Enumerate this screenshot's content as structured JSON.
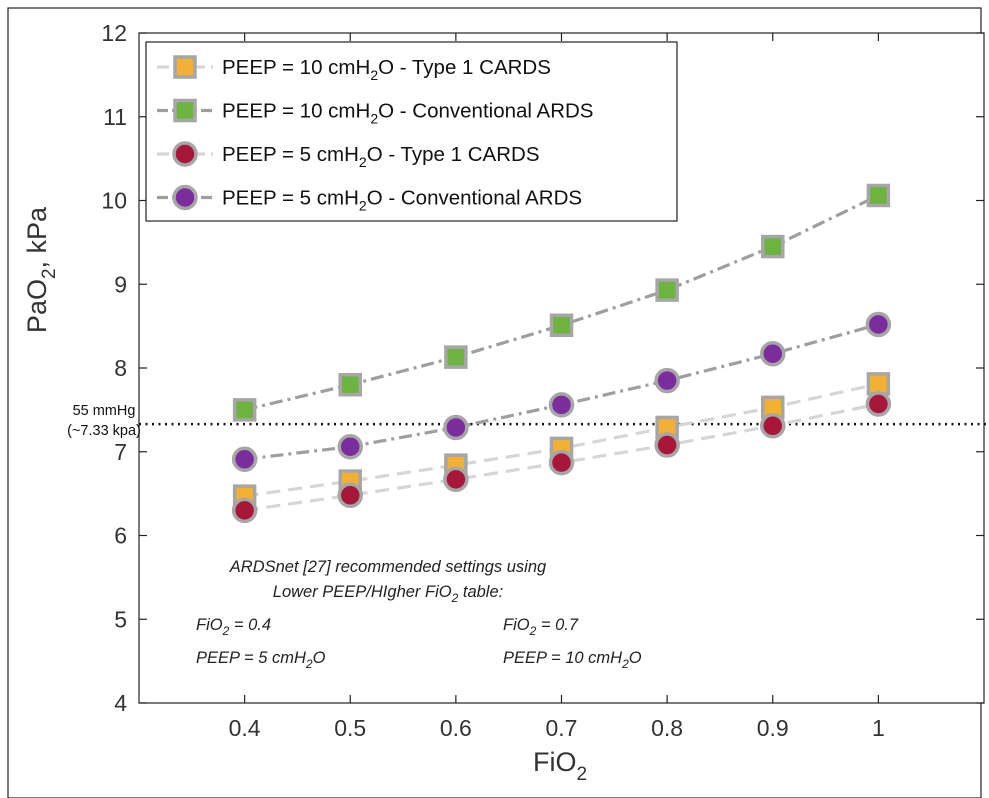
{
  "chart_data": {
    "type": "line",
    "xlabel": {
      "base": "FiO",
      "sub": "2"
    },
    "ylabel": {
      "base": "PaO",
      "sub": "2",
      "rest": ", kPa"
    },
    "xlim": [
      0.3,
      1.1
    ],
    "ylim": [
      4,
      12
    ],
    "xticks": [
      0.4,
      0.5,
      0.6,
      0.7,
      0.8,
      0.9,
      1
    ],
    "yticks": [
      4,
      5,
      6,
      7,
      8,
      9,
      10,
      11,
      12
    ],
    "x": [
      0.4,
      0.5,
      0.6,
      0.7,
      0.8,
      0.9,
      1.0
    ],
    "legend_position": "top-left",
    "series": [
      {
        "name": {
          "pre": "PEEP = 10 cmH",
          "sub": "2",
          "post": "O - Type 1 CARDS"
        },
        "marker": "square",
        "fill": "#f2b134",
        "line_color": "#d6d6d6",
        "line_style": "dashed",
        "values": [
          6.47,
          6.65,
          6.84,
          7.04,
          7.29,
          7.53,
          7.81
        ]
      },
      {
        "name": {
          "pre": "PEEP = 10 cmH",
          "sub": "2",
          "post": "O - Conventional ARDS"
        },
        "marker": "square",
        "fill": "#6cb33f",
        "line_color": "#9e9e9e",
        "line_style": "dashdot",
        "values": [
          7.5,
          7.8,
          8.13,
          8.51,
          8.93,
          9.45,
          10.06
        ]
      },
      {
        "name": {
          "pre": "PEEP = 5 cmH",
          "sub": "2",
          "post": "O - Type 1 CARDS"
        },
        "marker": "circle",
        "fill": "#a8173a",
        "line_color": "#d6d6d6",
        "line_style": "dashed",
        "values": [
          6.3,
          6.48,
          6.67,
          6.87,
          7.08,
          7.31,
          7.57
        ]
      },
      {
        "name": {
          "pre": "PEEP = 5 cmH",
          "sub": "2",
          "post": "O - Conventional ARDS"
        },
        "marker": "circle",
        "fill": "#7b2d9e",
        "line_color": "#9e9e9e",
        "line_style": "dashdot",
        "values": [
          6.91,
          7.06,
          7.29,
          7.56,
          7.85,
          8.17,
          8.52
        ]
      }
    ],
    "reference_line": {
      "y": 7.33,
      "label_line1": "55 mmHg",
      "label_line2": "(~7.33 kpa)"
    },
    "annotations": {
      "heading_line1": "ARDSnet [27] recommended settings using",
      "heading_line2": {
        "pre": "Lower PEEP/HIgher FiO",
        "sub": "2",
        "post": " table:"
      },
      "left_fio2": {
        "pre": "FiO",
        "sub": "2",
        "post": " = 0.4"
      },
      "left_peep": {
        "pre": "PEEP = 5 cmH",
        "sub": "2",
        "post": "O"
      },
      "right_fio2": {
        "pre": "FiO",
        "sub": "2",
        "post": " = 0.7"
      },
      "right_peep": {
        "pre": "PEEP = 10 cmH",
        "sub": "2",
        "post": "O"
      }
    }
  }
}
